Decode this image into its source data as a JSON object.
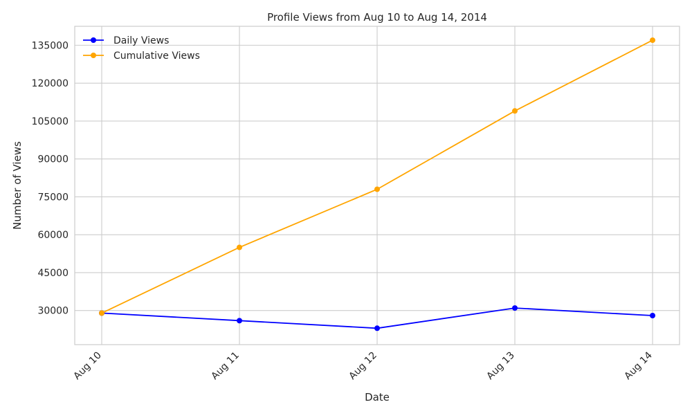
{
  "chart_data": {
    "type": "line",
    "title": "Profile Views from Aug 10 to Aug 14, 2014",
    "xlabel": "Date",
    "ylabel": "Number of Views",
    "categories": [
      "Aug 10",
      "Aug 11",
      "Aug 12",
      "Aug 13",
      "Aug 14"
    ],
    "yticks": [
      "30000",
      "45000",
      "60000",
      "75000",
      "90000",
      "105000",
      "120000",
      "135000"
    ],
    "ylim": [
      16500,
      142500
    ],
    "grid": true,
    "legend_position": "top-left",
    "series": [
      {
        "name": "Daily Views",
        "color": "#0000ff",
        "values": [
          29000,
          26000,
          23000,
          31000,
          28000
        ]
      },
      {
        "name": "Cumulative Views",
        "color": "#ffa500",
        "values": [
          29000,
          55000,
          78000,
          109000,
          137000
        ]
      }
    ]
  }
}
